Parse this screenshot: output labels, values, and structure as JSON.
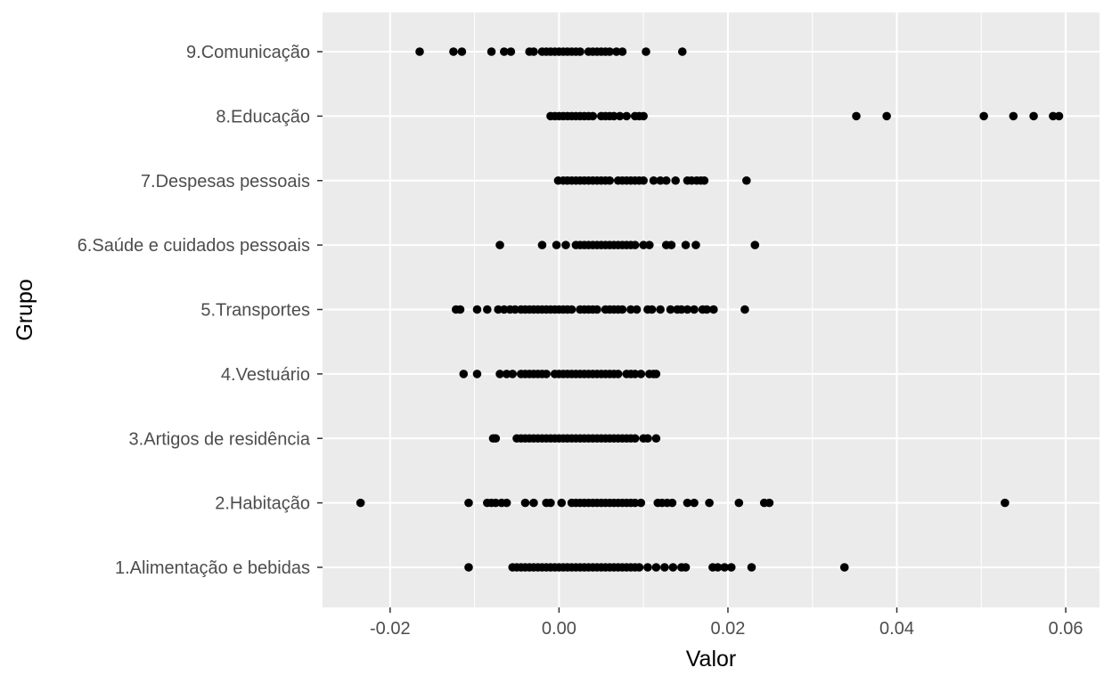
{
  "chart_data": {
    "type": "scatter",
    "title": "",
    "xlabel": "Valor",
    "ylabel": "Grupo",
    "xlim": [
      -0.028,
      0.064
    ],
    "xticks": [
      -0.02,
      0.0,
      0.02,
      0.04,
      0.06
    ],
    "xtick_labels": [
      "-0.02",
      "0.00",
      "0.02",
      "0.04",
      "0.06"
    ],
    "grid": true,
    "legend": "none",
    "colors": {
      "panel": "#ebebeb",
      "grid": "#ffffff",
      "point": "#000000"
    },
    "categories": [
      "1.Alimentação e bebidas",
      "2.Habitação",
      "3.Artigos de residência",
      "4.Vestuário",
      "5.Transportes",
      "6.Saúde e cuidados pessoais",
      "7.Despesas pessoais",
      "8.Educação",
      "9.Comunicação"
    ],
    "series": [
      {
        "values": [
          -0.0107,
          -0.0055,
          -0.005,
          -0.0045,
          -0.004,
          -0.0035,
          -0.003,
          -0.0025,
          -0.002,
          -0.0015,
          -0.001,
          -0.0005,
          0.0,
          0.0005,
          0.001,
          0.0015,
          0.002,
          0.0025,
          0.003,
          0.0035,
          0.004,
          0.0045,
          0.005,
          0.0055,
          0.006,
          0.0065,
          0.007,
          0.0075,
          0.008,
          0.0085,
          0.009,
          0.0095,
          0.0105,
          0.0115,
          0.0125,
          0.0135,
          0.0145,
          0.015,
          0.0182,
          0.0188,
          0.0196,
          0.0204,
          0.0228,
          0.0338
        ]
      },
      {
        "values": [
          -0.0235,
          -0.0107,
          -0.0085,
          -0.008,
          -0.0075,
          -0.0068,
          -0.0062,
          -0.004,
          -0.003,
          -0.0015,
          -0.001,
          0.0003,
          0.0015,
          0.002,
          0.0025,
          0.003,
          0.0035,
          0.004,
          0.0045,
          0.005,
          0.0055,
          0.006,
          0.0065,
          0.007,
          0.0075,
          0.008,
          0.0085,
          0.009,
          0.0097,
          0.0117,
          0.0122,
          0.0128,
          0.0134,
          0.0152,
          0.016,
          0.0178,
          0.0213,
          0.0243,
          0.0249,
          0.0528
        ]
      },
      {
        "values": [
          -0.0078,
          -0.0075,
          -0.005,
          -0.0045,
          -0.004,
          -0.0035,
          -0.003,
          -0.0025,
          -0.002,
          -0.0015,
          -0.001,
          -0.0005,
          0.0,
          0.0005,
          0.001,
          0.0015,
          0.002,
          0.0025,
          0.003,
          0.0035,
          0.004,
          0.0045,
          0.005,
          0.0055,
          0.006,
          0.0065,
          0.007,
          0.0075,
          0.008,
          0.0085,
          0.009,
          0.01,
          0.0105,
          0.0115
        ]
      },
      {
        "values": [
          -0.0113,
          -0.0097,
          -0.007,
          -0.0062,
          -0.0055,
          -0.0045,
          -0.004,
          -0.0035,
          -0.003,
          -0.0025,
          -0.002,
          -0.0015,
          -0.0005,
          0.0,
          0.0005,
          0.001,
          0.0015,
          0.002,
          0.0025,
          0.003,
          0.0035,
          0.004,
          0.0045,
          0.005,
          0.0055,
          0.006,
          0.0065,
          0.007,
          0.008,
          0.0085,
          0.009,
          0.0097,
          0.0107,
          0.0112,
          0.0115
        ]
      },
      {
        "values": [
          -0.0122,
          -0.0117,
          -0.0097,
          -0.0085,
          -0.0072,
          -0.0065,
          -0.0058,
          -0.0052,
          -0.0045,
          -0.004,
          -0.0035,
          -0.003,
          -0.0025,
          -0.002,
          -0.0015,
          -0.001,
          -0.0005,
          0.0,
          0.0005,
          0.001,
          0.0015,
          0.0025,
          0.003,
          0.0035,
          0.004,
          0.0045,
          0.0055,
          0.006,
          0.0065,
          0.007,
          0.0075,
          0.0085,
          0.0092,
          0.0105,
          0.011,
          0.012,
          0.0132,
          0.014,
          0.0145,
          0.0152,
          0.016,
          0.017,
          0.0175,
          0.0183,
          0.022
        ]
      },
      {
        "values": [
          -0.007,
          -0.002,
          -0.0003,
          0.0008,
          0.002,
          0.0025,
          0.003,
          0.0035,
          0.004,
          0.0045,
          0.005,
          0.0055,
          0.006,
          0.0065,
          0.007,
          0.0075,
          0.008,
          0.0085,
          0.009,
          0.01,
          0.0107,
          0.0127,
          0.0133,
          0.015,
          0.0162,
          0.0232
        ]
      },
      {
        "values": [
          -0.0001,
          0.0005,
          0.001,
          0.0015,
          0.002,
          0.0025,
          0.003,
          0.0035,
          0.004,
          0.0045,
          0.005,
          0.0055,
          0.006,
          0.007,
          0.0075,
          0.008,
          0.0085,
          0.009,
          0.0095,
          0.01,
          0.0112,
          0.012,
          0.0127,
          0.0138,
          0.0152,
          0.0157,
          0.0163,
          0.0168,
          0.0172,
          0.0222
        ]
      },
      {
        "values": [
          -0.001,
          -0.0005,
          0.0,
          0.0005,
          0.001,
          0.0015,
          0.002,
          0.0025,
          0.003,
          0.0035,
          0.004,
          0.005,
          0.0055,
          0.006,
          0.0065,
          0.0072,
          0.008,
          0.009,
          0.0095,
          0.01,
          0.0352,
          0.0388,
          0.0503,
          0.0538,
          0.0562,
          0.0585,
          0.0592
        ]
      },
      {
        "values": [
          -0.0165,
          -0.0125,
          -0.0115,
          -0.008,
          -0.0065,
          -0.0057,
          -0.0035,
          -0.003,
          -0.002,
          -0.0015,
          -0.001,
          -0.0005,
          0.0,
          0.0005,
          0.001,
          0.0015,
          0.002,
          0.0025,
          0.0035,
          0.004,
          0.0045,
          0.005,
          0.0055,
          0.006,
          0.0068,
          0.0075,
          0.0103,
          0.0146
        ]
      }
    ]
  }
}
